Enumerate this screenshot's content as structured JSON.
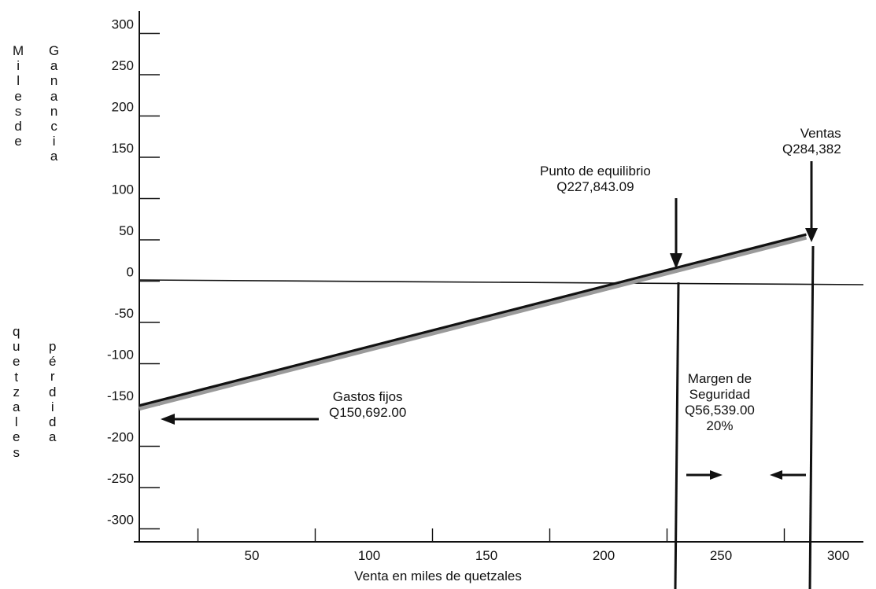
{
  "chart_data": {
    "type": "line",
    "xlabel": "Venta en miles de quetzales",
    "ylabel_left": "Miles de quetzales",
    "ylabel_upper": "Ganancia",
    "ylabel_lower": "pérdida",
    "x_ticks": [
      50,
      100,
      150,
      200,
      250,
      300
    ],
    "y_ticks": [
      300,
      250,
      200,
      150,
      100,
      50,
      0,
      -50,
      -100,
      -150,
      -200,
      -250,
      -300
    ],
    "xlim": [
      0,
      300
    ],
    "ylim": [
      -320,
      320
    ],
    "series": [
      {
        "x": [
          0,
          284.382
        ],
        "y": [
          -150.692,
          56.539
        ]
      }
    ],
    "vlines": [
      227.843,
      284.382
    ],
    "annotations": {
      "breakeven_label": "Punto de equilibrio",
      "breakeven_value": "Q227,843.09",
      "sales_label": "Ventas",
      "sales_value": "Q284,382",
      "fixed_label": "Gastos fijos",
      "fixed_value": "Q150,692.00",
      "margin_label_1": "Margen de",
      "margin_label_2": "Seguridad",
      "margin_value": "Q56,539.00",
      "margin_percent": "20%"
    }
  }
}
